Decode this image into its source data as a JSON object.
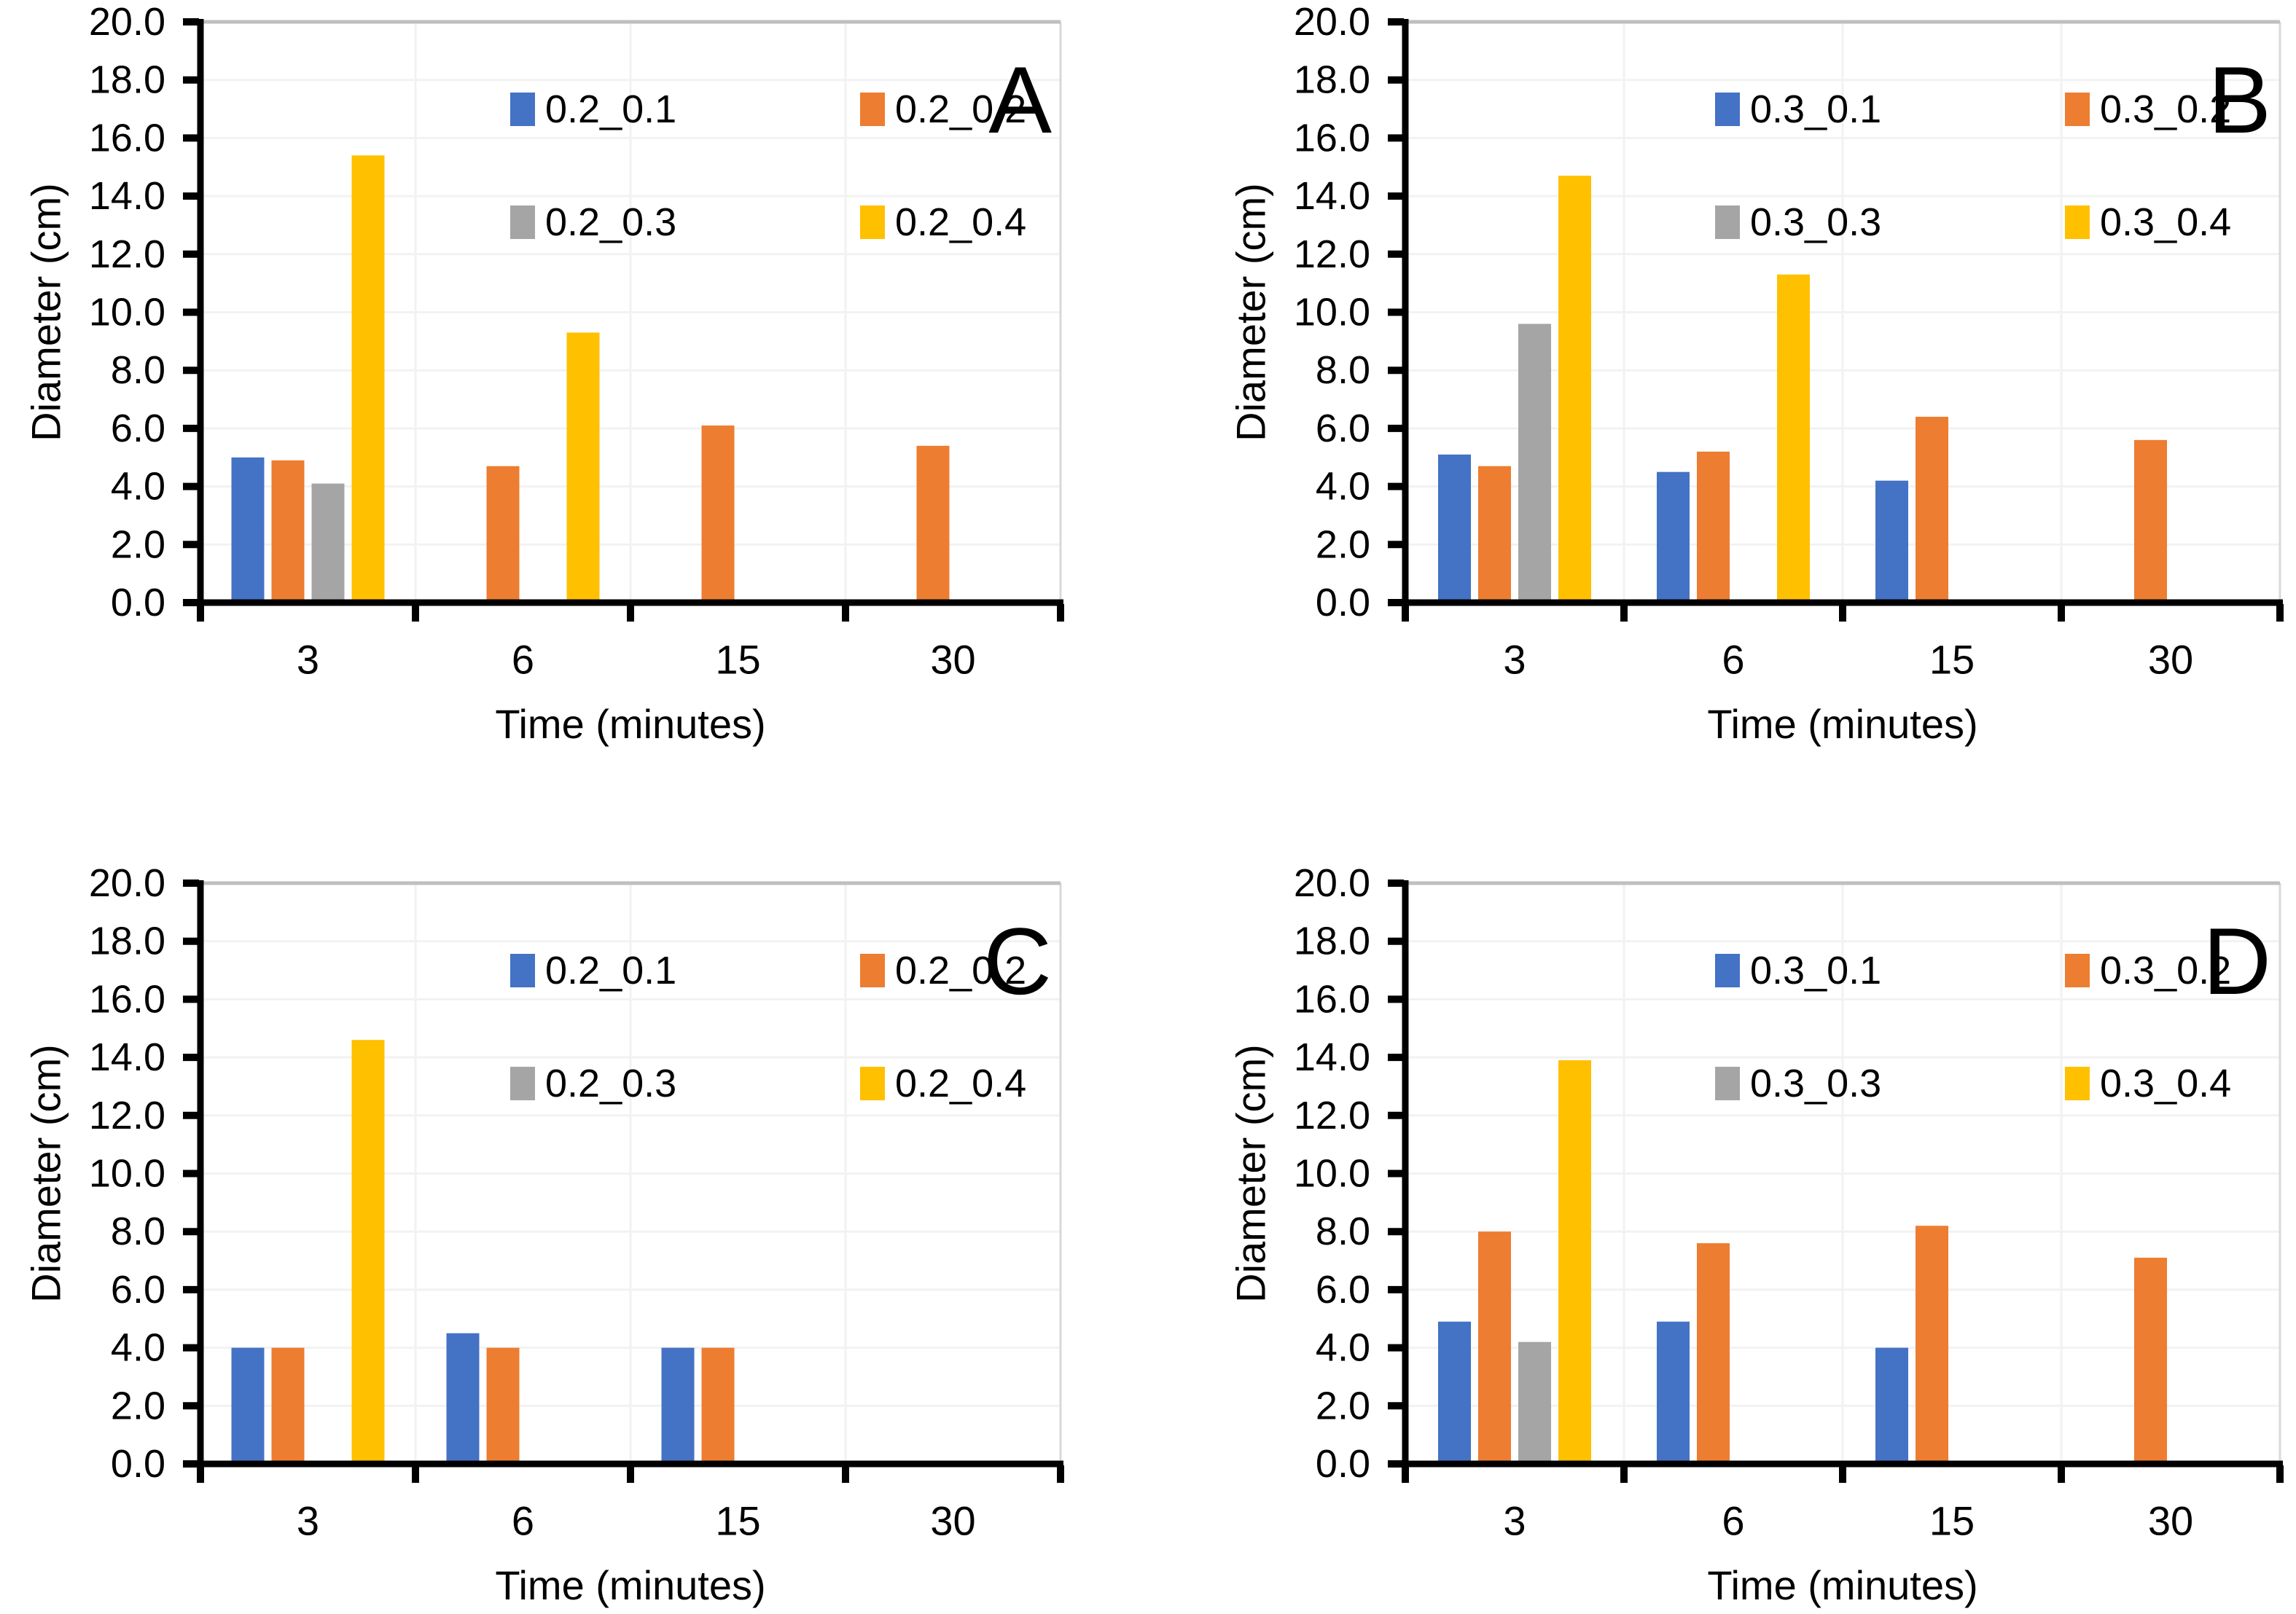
{
  "figure": {
    "background": "#FFFFFF",
    "text_color": "#000000",
    "grid_color": "#F2F2F2",
    "plot_top_border_color": "#BFBFBF",
    "plot_right_border_color": "#D9D9D9",
    "axis_color": "#000000",
    "series_colors": {
      "blue": "#4472C4",
      "orange": "#ED7D31",
      "gray": "#A5A5A5",
      "yellow": "#FFC000"
    }
  },
  "chart_data": [
    {
      "type": "bar",
      "panel_label": "A",
      "categories": [
        "3",
        "6",
        "15",
        "30"
      ],
      "xlabel": "Time (minutes)",
      "ylabel": "Diameter (cm)",
      "ylim": [
        0,
        20
      ],
      "ytick_step": 2,
      "grid": true,
      "legend_position": "inside-top-two-rows",
      "series": [
        {
          "name": "0.2_0.1",
          "color": "#4472C4",
          "values": [
            5.0,
            null,
            null,
            null
          ]
        },
        {
          "name": "0.2_0.2",
          "color": "#ED7D31",
          "values": [
            4.9,
            4.7,
            6.1,
            5.4
          ]
        },
        {
          "name": "0.2_0.3",
          "color": "#A5A5A5",
          "values": [
            4.1,
            null,
            null,
            null
          ]
        },
        {
          "name": "0.2_0.4",
          "color": "#FFC000",
          "values": [
            15.4,
            9.3,
            null,
            null
          ]
        }
      ]
    },
    {
      "type": "bar",
      "panel_label": "B",
      "categories": [
        "3",
        "6",
        "15",
        "30"
      ],
      "xlabel": "Time (minutes)",
      "ylabel": "Diameter (cm)",
      "ylim": [
        0,
        20
      ],
      "ytick_step": 2,
      "grid": true,
      "legend_position": "inside-top-two-rows",
      "series": [
        {
          "name": "0.3_0.1",
          "color": "#4472C4",
          "values": [
            5.1,
            4.5,
            4.2,
            null
          ]
        },
        {
          "name": "0.3_0.2",
          "color": "#ED7D31",
          "values": [
            4.7,
            5.2,
            6.4,
            5.6
          ]
        },
        {
          "name": "0.3_0.3",
          "color": "#A5A5A5",
          "values": [
            9.6,
            null,
            null,
            null
          ]
        },
        {
          "name": "0.3_0.4",
          "color": "#FFC000",
          "values": [
            14.7,
            11.3,
            null,
            null
          ]
        }
      ]
    },
    {
      "type": "bar",
      "panel_label": "C",
      "categories": [
        "3",
        "6",
        "15",
        "30"
      ],
      "xlabel": "Time (minutes)",
      "ylabel": "Diameter (cm)",
      "ylim": [
        0,
        20
      ],
      "ytick_step": 2,
      "grid": true,
      "legend_position": "inside-top-two-rows",
      "series": [
        {
          "name": "0.2_0.1",
          "color": "#4472C4",
          "values": [
            4.0,
            4.5,
            4.0,
            null
          ]
        },
        {
          "name": "0.2_0.2",
          "color": "#ED7D31",
          "values": [
            4.0,
            4.0,
            4.0,
            null
          ]
        },
        {
          "name": "0.2_0.3",
          "color": "#A5A5A5",
          "values": [
            null,
            null,
            null,
            null
          ]
        },
        {
          "name": "0.2_0.4",
          "color": "#FFC000",
          "values": [
            14.6,
            null,
            null,
            null
          ]
        }
      ]
    },
    {
      "type": "bar",
      "panel_label": "D",
      "categories": [
        "3",
        "6",
        "15",
        "30"
      ],
      "xlabel": "Time (minutes)",
      "ylabel": "Diameter (cm)",
      "ylim": [
        0,
        20
      ],
      "ytick_step": 2,
      "grid": true,
      "legend_position": "inside-top-two-rows",
      "series": [
        {
          "name": "0.3_0.1",
          "color": "#4472C4",
          "values": [
            4.9,
            4.9,
            4.0,
            null
          ]
        },
        {
          "name": "0.3_0.2",
          "color": "#ED7D31",
          "values": [
            8.0,
            7.6,
            8.2,
            7.1
          ]
        },
        {
          "name": "0.3_0.3",
          "color": "#A5A5A5",
          "values": [
            4.2,
            null,
            null,
            null
          ]
        },
        {
          "name": "0.3_0.4",
          "color": "#FFC000",
          "values": [
            13.9,
            null,
            null,
            null
          ]
        }
      ]
    }
  ]
}
